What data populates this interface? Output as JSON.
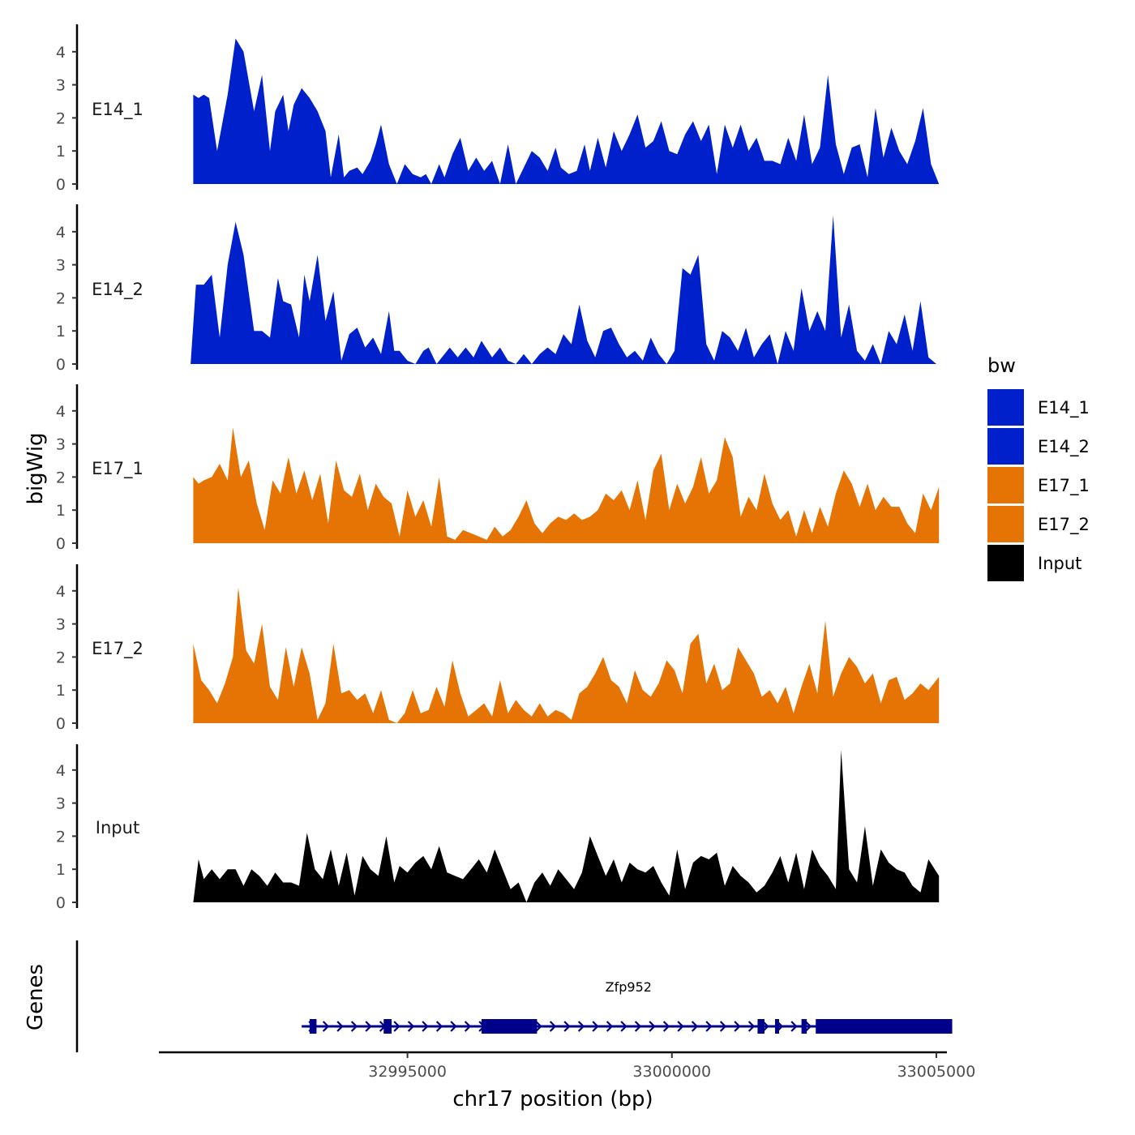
{
  "chart_data": {
    "type": "area",
    "title": "",
    "xlabel": "chr17 position (bp)",
    "ylabel": "bigWig",
    "genes_label": "Genes",
    "xlim": [
      32990300,
      33005200
    ],
    "ylim": [
      0,
      4.8
    ],
    "x_ticks": [
      32995000,
      33000000,
      33005000
    ],
    "x_tick_labels": [
      "32995000",
      "33000000",
      "33005000"
    ],
    "y_ticks": [
      0,
      1,
      2,
      3,
      4
    ],
    "y_tick_labels": [
      "0",
      "1",
      "2",
      "3",
      "4"
    ],
    "legend": {
      "title": "bw",
      "position": "right",
      "entries": [
        {
          "label": "E14_1",
          "color": "#0020cc"
        },
        {
          "label": "E14_2",
          "color": "#0020cc"
        },
        {
          "label": "E17_1",
          "color": "#e67405"
        },
        {
          "label": "E17_2",
          "color": "#e67405"
        },
        {
          "label": "Input",
          "color": "#000000"
        }
      ]
    },
    "series": [
      {
        "name": "E14_1",
        "label": "E14_1",
        "color": "#0020cc",
        "x": [
          32990950,
          32991050,
          32991150,
          32991250,
          32991400,
          32991600,
          32991750,
          32991900,
          32992100,
          32992250,
          32992400,
          32992500,
          32992650,
          32992750,
          32992850,
          32993000,
          32993150,
          32993300,
          32993450,
          32993550,
          32993700,
          32993800,
          32993900,
          32994050,
          32994150,
          32994300,
          32994400,
          32994500,
          32994650,
          32994800,
          32994950,
          32995100,
          32995250,
          32995350,
          32995450,
          32995600,
          32995700,
          32995850,
          32996000,
          32996150,
          32996300,
          32996450,
          32996600,
          32996750,
          32996900,
          32997050,
          32997200,
          32997350,
          32997500,
          32997650,
          32997800,
          32997900,
          32998050,
          32998200,
          32998350,
          32998450,
          32998600,
          32998750,
          32998900,
          32999050,
          32999200,
          32999350,
          32999500,
          32999650,
          32999800,
          32999950,
          33000100,
          33000250,
          33000400,
          33000550,
          33000700,
          33000850,
          33001000,
          33001150,
          33001300,
          33001450,
          33001600,
          33001750,
          33001900,
          33002050,
          33002200,
          33002350,
          33002500,
          33002650,
          33002800,
          33002950,
          33003100,
          33003250,
          33003400,
          33003550,
          33003700,
          33003850,
          33004000,
          33004150,
          33004300,
          33004450,
          33004600,
          33004750,
          33004900,
          33005050
        ],
        "y": [
          2.7,
          2.6,
          2.7,
          2.6,
          1.0,
          2.7,
          4.4,
          4.0,
          2.2,
          3.3,
          1.0,
          2.2,
          2.7,
          1.6,
          2.4,
          2.9,
          2.6,
          2.2,
          1.6,
          0.2,
          1.5,
          0.2,
          0.4,
          0.5,
          0.3,
          0.7,
          1.2,
          1.8,
          0.6,
          0.0,
          0.6,
          0.3,
          0.2,
          0.3,
          0.0,
          0.6,
          0.2,
          0.9,
          1.4,
          0.4,
          0.8,
          0.4,
          0.7,
          0.0,
          1.2,
          0.0,
          0.5,
          1.0,
          0.8,
          0.4,
          1.1,
          0.5,
          0.3,
          0.4,
          1.2,
          0.4,
          1.4,
          0.5,
          1.6,
          1.0,
          1.5,
          2.1,
          1.1,
          1.3,
          1.9,
          1.0,
          0.9,
          1.5,
          1.9,
          1.3,
          1.8,
          0.3,
          1.8,
          1.1,
          1.8,
          1.0,
          1.4,
          0.7,
          0.7,
          0.6,
          1.4,
          0.7,
          2.1,
          0.6,
          1.1,
          3.3,
          1.2,
          0.3,
          1.1,
          1.2,
          0.2,
          2.3,
          0.8,
          1.7,
          1.0,
          0.6,
          1.3,
          2.3,
          0.6,
          0.0
        ]
      },
      {
        "name": "E14_2",
        "label": "E14_2",
        "color": "#0020cc",
        "x": [
          32990900,
          32991000,
          32991150,
          32991300,
          32991450,
          32991600,
          32991750,
          32991900,
          32992100,
          32992250,
          32992400,
          32992550,
          32992650,
          32992800,
          32992950,
          32993050,
          32993150,
          32993300,
          32993450,
          32993600,
          32993750,
          32993900,
          32994050,
          32994200,
          32994350,
          32994500,
          32994650,
          32994750,
          32994850,
          32995000,
          32995150,
          32995300,
          32995400,
          32995550,
          32995700,
          32995800,
          32995950,
          32996100,
          32996250,
          32996400,
          32996600,
          32996750,
          32996900,
          32997050,
          32997200,
          32997350,
          32997500,
          32997650,
          32997800,
          32997950,
          32998100,
          32998250,
          32998400,
          32998550,
          32998700,
          32998850,
          32999000,
          32999150,
          32999300,
          32999450,
          32999600,
          32999750,
          32999900,
          33000050,
          33000200,
          33000350,
          33000500,
          33000650,
          33000800,
          33000950,
          33001100,
          33001250,
          33001400,
          33001550,
          33001700,
          33001850,
          33002000,
          33002150,
          33002300,
          33002450,
          33002600,
          33002750,
          33002900,
          33003050,
          33003200,
          33003350,
          33003500,
          33003650,
          33003800,
          33003950,
          33004100,
          33004250,
          33004400,
          33004550,
          33004700,
          33004850,
          33005000
        ],
        "y": [
          0.0,
          2.4,
          2.4,
          2.7,
          0.8,
          3.0,
          4.3,
          3.3,
          1.0,
          1.0,
          0.8,
          2.6,
          1.9,
          1.8,
          0.8,
          2.7,
          1.9,
          3.3,
          1.3,
          2.2,
          0.1,
          0.9,
          1.1,
          0.5,
          0.8,
          0.3,
          1.6,
          0.4,
          0.4,
          0.1,
          0.0,
          0.4,
          0.5,
          0.0,
          0.3,
          0.5,
          0.2,
          0.5,
          0.2,
          0.7,
          0.2,
          0.5,
          0.1,
          0.0,
          0.3,
          0.0,
          0.3,
          0.5,
          0.3,
          0.9,
          0.6,
          1.8,
          0.7,
          0.2,
          1.0,
          1.1,
          0.6,
          0.2,
          0.4,
          0.1,
          0.8,
          0.3,
          0.0,
          0.4,
          2.9,
          2.7,
          3.3,
          0.6,
          0.1,
          1.0,
          0.8,
          0.4,
          1.1,
          0.2,
          0.6,
          0.9,
          0.0,
          1.0,
          0.4,
          2.3,
          1.0,
          1.6,
          1.0,
          4.5,
          0.8,
          1.8,
          0.4,
          0.1,
          0.6,
          0.0,
          1.0,
          0.6,
          1.5,
          0.4,
          1.9,
          0.2,
          0.0
        ]
      },
      {
        "name": "E17_1",
        "label": "E17_1",
        "color": "#e67405",
        "x": [
          32990950,
          32991050,
          32991150,
          32991300,
          32991450,
          32991600,
          32991700,
          32991850,
          32992000,
          32992150,
          32992300,
          32992450,
          32992600,
          32992750,
          32992900,
          32993050,
          32993200,
          32993350,
          32993500,
          32993650,
          32993800,
          32993950,
          32994100,
          32994250,
          32994400,
          32994550,
          32994700,
          32994850,
          32995000,
          32995150,
          32995300,
          32995450,
          32995600,
          32995750,
          32995900,
          32996050,
          32996200,
          32996350,
          32996500,
          32996650,
          32996800,
          32996950,
          32997100,
          32997250,
          32997400,
          32997550,
          32997700,
          32997850,
          32998000,
          32998150,
          32998300,
          32998450,
          32998600,
          32998750,
          32998900,
          32999050,
          32999200,
          32999350,
          32999500,
          32999650,
          32999800,
          32999950,
          33000100,
          33000250,
          33000400,
          33000550,
          33000700,
          33000850,
          33001000,
          33001150,
          33001300,
          33001450,
          33001600,
          33001750,
          33001900,
          33002050,
          33002200,
          33002350,
          33002500,
          33002650,
          33002800,
          33002950,
          33003100,
          33003250,
          33003400,
          33003550,
          33003700,
          33003850,
          33004000,
          33004150,
          33004300,
          33004450,
          33004600,
          33004750,
          33004900,
          33005050
        ],
        "y": [
          2.0,
          1.8,
          1.9,
          2.0,
          2.4,
          1.9,
          3.5,
          2.0,
          2.5,
          1.2,
          0.4,
          1.9,
          1.5,
          2.6,
          1.5,
          2.2,
          1.3,
          2.1,
          0.6,
          2.5,
          1.6,
          1.4,
          2.1,
          1.0,
          1.8,
          1.4,
          1.2,
          0.2,
          1.6,
          0.8,
          1.3,
          0.5,
          2.0,
          0.2,
          0.1,
          0.4,
          0.3,
          0.2,
          0.1,
          0.5,
          0.2,
          0.4,
          0.8,
          1.3,
          0.6,
          0.3,
          0.6,
          0.8,
          0.7,
          0.9,
          0.7,
          0.8,
          1.0,
          1.5,
          1.3,
          1.6,
          1.0,
          1.9,
          0.7,
          2.2,
          2.7,
          1.0,
          1.8,
          1.2,
          1.7,
          2.6,
          1.5,
          1.9,
          3.2,
          2.6,
          0.8,
          1.4,
          1.0,
          2.1,
          1.2,
          0.7,
          1.0,
          0.2,
          1.0,
          0.3,
          1.1,
          0.5,
          1.5,
          2.2,
          1.8,
          1.1,
          1.8,
          1.0,
          1.4,
          1.1,
          1.1,
          0.6,
          0.3,
          1.5,
          1.0,
          1.7
        ]
      },
      {
        "name": "E17_2",
        "label": "E17_2",
        "color": "#e67405",
        "x": [
          32990950,
          32991100,
          32991250,
          32991400,
          32991550,
          32991700,
          32991800,
          32991950,
          32992100,
          32992250,
          32992400,
          32992550,
          32992700,
          32992850,
          32993000,
          32993150,
          32993300,
          32993450,
          32993600,
          32993750,
          32993900,
          32994050,
          32994200,
          32994350,
          32994500,
          32994650,
          32994800,
          32994950,
          32995100,
          32995250,
          32995400,
          32995550,
          32995700,
          32995850,
          32996000,
          32996150,
          32996300,
          32996450,
          32996600,
          32996750,
          32996900,
          32997050,
          32997200,
          32997350,
          32997500,
          32997650,
          32997800,
          32997950,
          32998100,
          32998250,
          32998400,
          32998550,
          32998700,
          32998850,
          32999000,
          32999150,
          32999300,
          32999450,
          32999600,
          32999750,
          32999900,
          33000050,
          33000200,
          33000350,
          33000500,
          33000650,
          33000800,
          33000950,
          33001100,
          33001250,
          33001400,
          33001550,
          33001700,
          33001850,
          33002000,
          33002150,
          33002300,
          33002450,
          33002600,
          33002750,
          33002900,
          33003050,
          33003200,
          33003350,
          33003500,
          33003650,
          33003800,
          33003950,
          33004100,
          33004250,
          33004400,
          33004550,
          33004700,
          33004850,
          33005050
        ],
        "y": [
          2.4,
          1.3,
          1.0,
          0.6,
          1.2,
          2.0,
          4.1,
          2.2,
          1.8,
          3.0,
          1.1,
          0.7,
          2.3,
          1.1,
          2.3,
          1.5,
          0.1,
          0.6,
          2.4,
          0.9,
          1.0,
          0.7,
          0.9,
          0.3,
          1.0,
          0.1,
          0.0,
          0.3,
          1.0,
          0.3,
          0.4,
          1.1,
          0.5,
          1.9,
          0.9,
          0.2,
          0.4,
          0.6,
          0.2,
          1.3,
          0.3,
          0.7,
          0.4,
          0.2,
          0.6,
          0.2,
          0.4,
          0.3,
          0.1,
          0.9,
          1.1,
          1.5,
          2.0,
          1.3,
          1.1,
          0.6,
          1.6,
          1.0,
          0.8,
          1.2,
          1.9,
          1.6,
          0.9,
          2.4,
          2.7,
          1.2,
          1.8,
          1.0,
          1.2,
          2.3,
          1.9,
          1.5,
          0.8,
          1.0,
          0.6,
          1.1,
          0.3,
          1.1,
          1.8,
          0.9,
          3.1,
          0.8,
          1.5,
          2.0,
          1.7,
          1.2,
          1.5,
          0.6,
          1.3,
          1.4,
          0.7,
          0.9,
          1.2,
          1.0,
          1.4
        ]
      },
      {
        "name": "Input",
        "label": "Input",
        "color": "#000000",
        "x": [
          32990950,
          32991050,
          32991150,
          32991300,
          32991450,
          32991600,
          32991750,
          32991900,
          32992050,
          32992200,
          32992350,
          32992500,
          32992650,
          32992800,
          32992950,
          32993100,
          32993250,
          32993400,
          32993550,
          32993700,
          32993850,
          32994000,
          32994150,
          32994300,
          32994450,
          32994600,
          32994750,
          32994850,
          32995000,
          32995150,
          32995300,
          32995450,
          32995600,
          32995750,
          32995900,
          32996050,
          32996200,
          32996350,
          32996500,
          32996650,
          32996800,
          32996950,
          32997100,
          32997250,
          32997400,
          32997550,
          32997700,
          32997850,
          32998000,
          32998150,
          32998300,
          32998450,
          32998600,
          32998750,
          32998900,
          32999050,
          32999200,
          32999350,
          32999500,
          32999650,
          32999800,
          32999950,
          33000100,
          33000250,
          33000400,
          33000550,
          33000700,
          33000850,
          33001000,
          33001150,
          33001300,
          33001450,
          33001600,
          33001750,
          33001900,
          33002050,
          33002200,
          33002350,
          33002500,
          33002650,
          33002800,
          33002950,
          33003100,
          33003200,
          33003350,
          33003500,
          33003650,
          33003800,
          33003950,
          33004100,
          33004250,
          33004400,
          33004550,
          33004700,
          33004850,
          33005050
        ],
        "y": [
          0.0,
          1.3,
          0.7,
          1.0,
          0.7,
          1.0,
          1.0,
          0.5,
          1.0,
          0.8,
          0.5,
          0.9,
          0.6,
          0.6,
          0.5,
          2.1,
          1.0,
          0.7,
          1.6,
          0.5,
          1.5,
          0.2,
          1.4,
          1.0,
          0.8,
          2.0,
          0.6,
          1.1,
          0.9,
          1.2,
          1.4,
          1.0,
          1.7,
          0.9,
          0.8,
          0.7,
          1.0,
          1.3,
          0.9,
          1.6,
          1.0,
          0.4,
          0.6,
          0.0,
          0.6,
          0.9,
          0.5,
          1.0,
          0.7,
          0.4,
          0.9,
          2.0,
          1.4,
          0.8,
          1.3,
          0.6,
          1.2,
          1.0,
          0.9,
          1.1,
          0.6,
          0.2,
          1.6,
          0.4,
          1.2,
          1.4,
          1.3,
          1.5,
          0.5,
          1.1,
          0.8,
          0.6,
          0.3,
          0.5,
          0.9,
          1.4,
          0.6,
          1.5,
          0.4,
          1.6,
          1.1,
          0.8,
          0.4,
          4.6,
          1.0,
          0.6,
          2.3,
          0.5,
          1.6,
          1.2,
          1.0,
          0.9,
          0.5,
          0.3,
          1.3,
          0.8
        ]
      }
    ],
    "gene_track": {
      "gene_name": "Zfp952",
      "strand": "+",
      "start": 32993000,
      "end": 33005300,
      "color": "#00008b",
      "exons": [
        {
          "start": 32993150,
          "end": 32993280
        },
        {
          "start": 32994550,
          "end": 32994700
        },
        {
          "start": 32996400,
          "end": 32997450
        },
        {
          "start": 33001620,
          "end": 33001750
        },
        {
          "start": 33001950,
          "end": 33002000
        },
        {
          "start": 33002450,
          "end": 33002550
        },
        {
          "start": 33002720,
          "end": 33005300
        }
      ]
    }
  }
}
